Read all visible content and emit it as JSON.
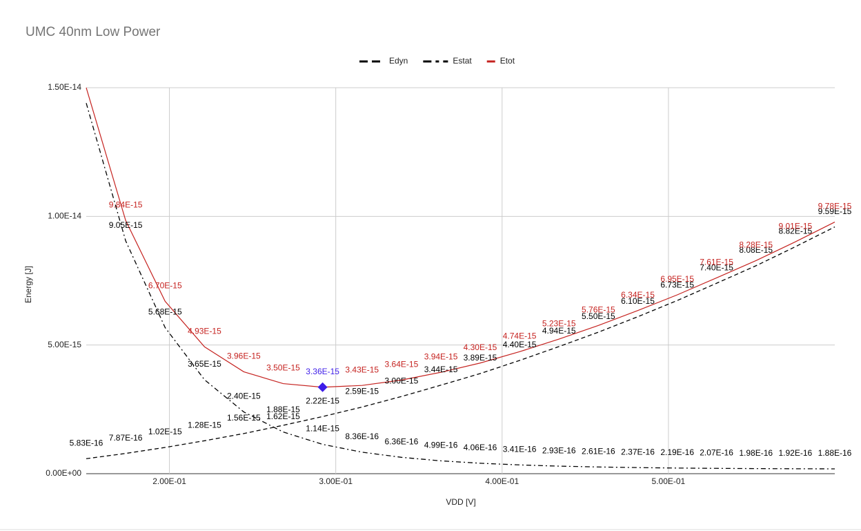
{
  "chart_data": {
    "type": "line",
    "title": "UMC 40nm Low Power",
    "xlabel": "VDD [V]",
    "ylabel": "Energy [J]",
    "x": [
      0.15,
      0.1737,
      0.1974,
      0.2211,
      0.2447,
      0.2684,
      0.2921,
      0.3158,
      0.3395,
      0.3632,
      0.3868,
      0.4105,
      0.4342,
      0.4579,
      0.4816,
      0.5053,
      0.5289,
      0.5526,
      0.5763,
      0.6
    ],
    "series": [
      {
        "name": "Edyn",
        "color": "#000000",
        "style": "dashed",
        "values": [
          5.83e-16,
          7.87e-16,
          1.02e-15,
          1.28e-15,
          1.56e-15,
          1.88e-15,
          2.22e-15,
          2.59e-15,
          3e-15,
          3.44e-15,
          3.89e-15,
          4.4e-15,
          4.94e-15,
          5.5e-15,
          6.1e-15,
          6.73e-15,
          7.4e-15,
          8.08e-15,
          8.82e-15,
          9.59e-15
        ],
        "value_labels": [
          "5.83E-16",
          "7.87E-16",
          "1.02E-15",
          "1.28E-15",
          "1.56E-15",
          "1.88E-15",
          "2.22E-15",
          "2.59E-15",
          "3.00E-15",
          "3.44E-15",
          "3.89E-15",
          "4.40E-15",
          "4.94E-15",
          "5.50E-15",
          "6.10E-15",
          "6.73E-15",
          "7.40E-15",
          "8.08E-15",
          "8.82E-15",
          "9.59E-15"
        ]
      },
      {
        "name": "Estat",
        "color": "#000000",
        "style": "dashdot",
        "values": [
          1.44e-14,
          9.05e-15,
          5.68e-15,
          3.65e-15,
          2.4e-15,
          1.62e-15,
          1.14e-15,
          8.36e-16,
          6.36e-16,
          4.99e-16,
          4.06e-16,
          3.41e-16,
          2.93e-16,
          2.61e-16,
          2.37e-16,
          2.19e-16,
          2.07e-16,
          1.98e-16,
          1.92e-16,
          1.88e-16
        ],
        "value_labels": [
          null,
          "9.05E-15",
          "5.68E-15",
          "3.65E-15",
          "2.40E-15",
          "1.62E-15",
          "1.14E-15",
          "8.36E-16",
          "6.36E-16",
          "4.99E-16",
          "4.06E-16",
          "3.41E-16",
          "2.93E-16",
          "2.61E-16",
          "2.37E-16",
          "2.19E-16",
          "2.07E-16",
          "1.98E-16",
          "1.92E-16",
          "1.88E-16"
        ]
      },
      {
        "name": "Etot",
        "color": "#c5221f",
        "style": "solid",
        "highlight_index": 6,
        "highlight_color": "#3d1ce8",
        "values": [
          1.5e-14,
          9.84e-15,
          6.7e-15,
          4.93e-15,
          3.96e-15,
          3.5e-15,
          3.36e-15,
          3.43e-15,
          3.64e-15,
          3.94e-15,
          4.3e-15,
          4.74e-15,
          5.23e-15,
          5.76e-15,
          6.34e-15,
          6.95e-15,
          7.61e-15,
          8.28e-15,
          9.01e-15,
          9.78e-15
        ],
        "value_labels": [
          null,
          "9.84E-15",
          "6.70E-15",
          "4.93E-15",
          "3.96E-15",
          "3.50E-15",
          "3.36E-15",
          "3.43E-15",
          "3.64E-15",
          "3.94E-15",
          "4.30E-15",
          "4.74E-15",
          "5.23E-15",
          "5.76E-15",
          "6.34E-15",
          "6.95E-15",
          "7.61E-15",
          "8.28E-15",
          "9.01E-15",
          "9.78E-15"
        ]
      }
    ],
    "xlim": [
      0.15,
      0.6
    ],
    "xticks": [
      {
        "value": 0.2,
        "label": "2.00E-01"
      },
      {
        "value": 0.3,
        "label": "3.00E-01"
      },
      {
        "value": 0.4,
        "label": "4.00E-01"
      },
      {
        "value": 0.5,
        "label": "5.00E-01"
      }
    ],
    "ylim": [
      0,
      1.5e-14
    ],
    "yticks": [
      {
        "value": 0,
        "label": "0.00E+00"
      },
      {
        "value": 5e-15,
        "label": "5.00E-15"
      },
      {
        "value": 1e-14,
        "label": "1.00E-14"
      },
      {
        "value": 1.5e-14,
        "label": "1.50E-14"
      }
    ],
    "grid": true,
    "legend": "top"
  }
}
